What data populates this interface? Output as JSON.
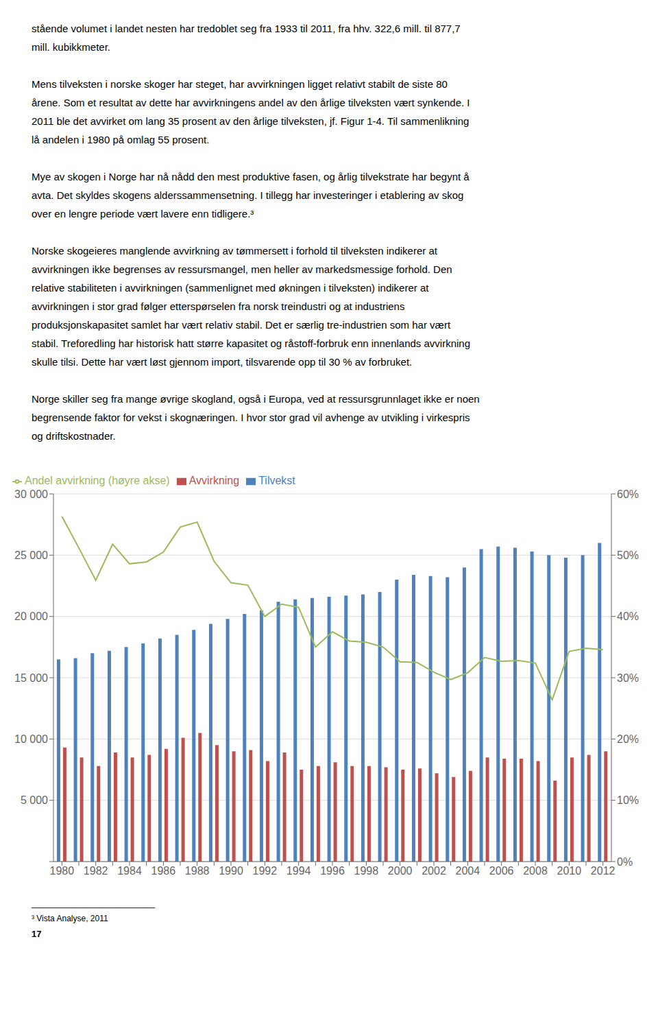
{
  "chart_data": {
    "type": "bar",
    "annotations": [
      [
        "stående volumet i landet nesten har tredoblet seg fra 1933 til 2011, fra hhv. 322,6 mill. til 877,7",
        "mill. kubikkmeter."
      ],
      [
        "Mens tilveksten i norske skoger har steget, har avvirkningen ligget relativt stabilt de siste 80",
        "årene. Som et resultat av dette har avvirkningens andel av den årlige tilveksten vært synkende. I",
        "2011 ble det avvirket om lang 35 prosent av den årlige tilveksten, jf. Figur 1-4. Til sammenlikning",
        "lå andelen i 1980 på omlag 55 prosent."
      ],
      [
        "Mye av skogen i Norge har nå nådd den mest produktive fasen, og årlig tilvekstrate har begynt å",
        "avta. Det skyldes skogens alderssammensetning. I tillegg har investeringer i etablering av skog",
        "over en lengre periode vært lavere enn tidligere.³"
      ],
      [
        "Norske skogeieres manglende avvirkning av tømmersett i forhold til tilveksten indikerer at",
        "avvirkningen ikke begrenses av ressursmangel, men heller av markedsmessige forhold. Den",
        "relative stabiliteten i avvirkningen (sammenlignet med økningen i tilveksten) indikerer at",
        "avvirkningen i stor grad følger etterspørselen fra norsk treindustri og at industriens",
        "produksjonskapasitet samlet har vært relativ stabil. Det er særlig tre-industrien som har vært",
        "stabil. Treforedling har historisk hatt større kapasitet og råstoff-forbruk enn innenlands avvirkning",
        "skulle tilsi. Dette har vært løst gjennom import, tilsvarende opp til 30 % av forbruket."
      ],
      [
        "Norge skiller seg fra mange øvrige skogland, også i Europa, ved at ressursgrunnlaget ikke er noen",
        "begrensende faktor for vekst i skognæringen. I hvor stor grad vil avhenge av utvikling i virkespris",
        "og driftskostnader."
      ]
    ],
    "footnote": [
      "___________________________",
      "³ Vista Analyse, 2011"
    ],
    "page_number": "17",
    "categories": [
      "1980",
      null,
      "1982",
      null,
      "1984",
      null,
      "1986",
      null,
      "1988",
      null,
      "1990",
      null,
      "1992",
      null,
      "1994",
      null,
      "1996",
      null,
      "1998",
      null,
      "2000",
      null,
      "2002",
      null,
      "2004",
      null,
      "2006",
      null,
      "2008",
      null,
      "2010",
      null,
      "2012"
    ],
    "series": [
      {
        "name": "Tilvekst",
        "color": "#4F81BD",
        "values": [
          16500,
          16600,
          17000,
          17200,
          17500,
          17800,
          18200,
          18500,
          18900,
          19400,
          19800,
          20200,
          20500,
          21200,
          21400,
          21500,
          21600,
          21700,
          21800,
          22000,
          23000,
          23400,
          23300,
          23200,
          24000,
          25500,
          25700,
          25600,
          25300,
          25000,
          24800,
          25000,
          26000
        ]
      },
      {
        "name": "Avvirkning",
        "color": "#C0504D",
        "values": [
          9300,
          8500,
          7800,
          8900,
          8500,
          8700,
          9200,
          10100,
          10500,
          9500,
          9000,
          9100,
          8200,
          8900,
          7500,
          7800,
          8100,
          7800,
          7800,
          7700,
          7500,
          7600,
          7200,
          6900,
          7400,
          8500,
          8400,
          8400,
          8200,
          6600,
          8500,
          8700,
          9000
        ]
      },
      {
        "name": "Andel avvirkning (høyre akse)",
        "type": "line",
        "axis": "y2",
        "color": "#9BBB59",
        "values": [
          0.563,
          0.512,
          0.459,
          0.518,
          0.486,
          0.489,
          0.505,
          0.546,
          0.554,
          0.49,
          0.455,
          0.451,
          0.4,
          0.42,
          0.415,
          0.35,
          0.375,
          0.36,
          0.358,
          0.35,
          0.326,
          0.325,
          0.309,
          0.297,
          0.308,
          0.333,
          0.327,
          0.328,
          0.324,
          0.264,
          0.343,
          0.348,
          0.346
        ]
      }
    ],
    "ylim": [
      0,
      30000
    ],
    "yticks": [
      {
        "value": 0,
        "label": ""
      },
      {
        "value": 5000,
        "label": "5 000"
      },
      {
        "value": 10000,
        "label": "10 000"
      },
      {
        "value": 15000,
        "label": "15 000"
      },
      {
        "value": 20000,
        "label": "20 000"
      },
      {
        "value": 25000,
        "label": "25 000"
      },
      {
        "value": 30000,
        "label": "30 000"
      }
    ],
    "y2lim": [
      0.0,
      0.6
    ],
    "y2ticks": [
      {
        "value": 0.0,
        "label": "0%"
      },
      {
        "value": 0.1,
        "label": "10%"
      },
      {
        "value": 0.2,
        "label": "20%"
      },
      {
        "value": 0.3,
        "label": "30%"
      },
      {
        "value": 0.4,
        "label": "40%"
      },
      {
        "value": 0.5,
        "label": "50%"
      },
      {
        "value": 0.6,
        "label": "60%"
      }
    ],
    "grid": true,
    "legend": "upper left"
  }
}
